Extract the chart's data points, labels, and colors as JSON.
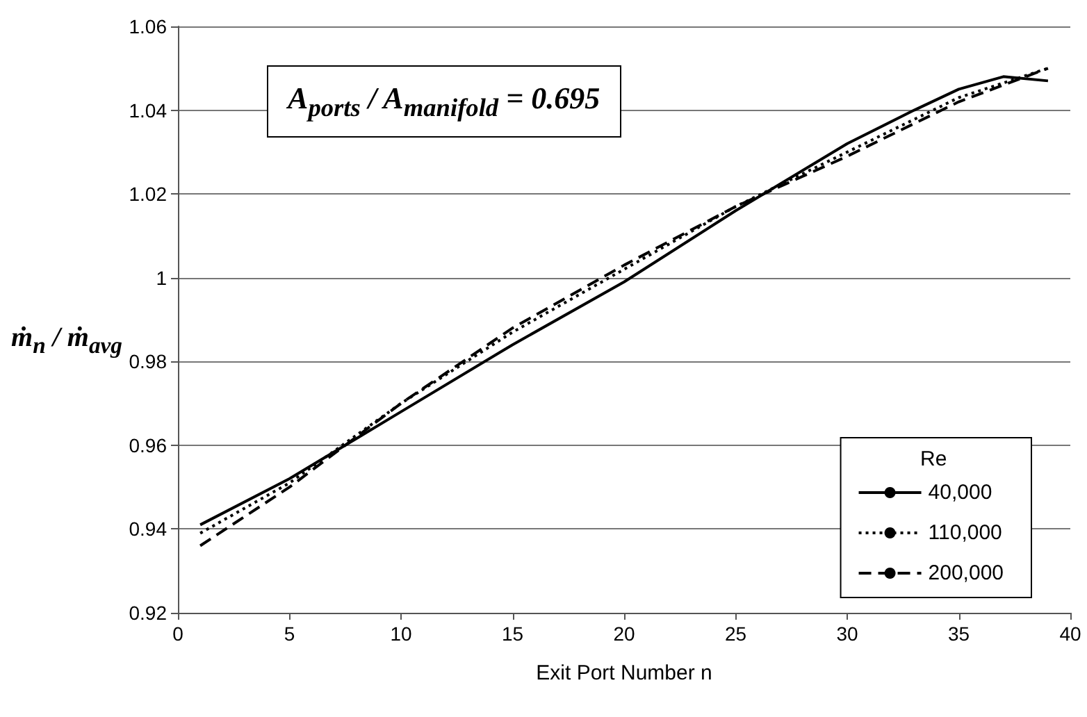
{
  "chart_data": {
    "type": "line",
    "xlabel": "Exit Port Number n",
    "ylabel": "ṁ$_{n}$ / ṁ$_{avg}$",
    "legend_title": "Re",
    "annotations": [
      "A$_{ports}$ / A$_{manifold}$ = 0.695"
    ],
    "xlim": [
      0,
      40
    ],
    "xticks": [
      0,
      5,
      10,
      15,
      20,
      25,
      30,
      35,
      40
    ],
    "ylim": [
      0.92,
      1.06
    ],
    "yticks": [
      0.92,
      0.94,
      0.96,
      0.98,
      1,
      1.02,
      1.04,
      1.06
    ],
    "grid": "y",
    "legend": "right",
    "marker": "none",
    "series": [
      {
        "name": "40,000",
        "color": "#000000",
        "line_style": "solid",
        "x": [
          1,
          5,
          10,
          15,
          20,
          25,
          30,
          33,
          35,
          37,
          39
        ],
        "values": [
          0.941,
          0.952,
          0.968,
          0.984,
          0.999,
          1.016,
          1.032,
          1.04,
          1.045,
          1.048,
          1.047
        ]
      },
      {
        "name": "110,000",
        "color": "#000000",
        "line_style": "dotted",
        "x": [
          1,
          5,
          10,
          15,
          20,
          25,
          30,
          35,
          39
        ],
        "values": [
          0.939,
          0.951,
          0.97,
          0.987,
          1.002,
          1.017,
          1.03,
          1.043,
          1.05
        ]
      },
      {
        "name": "200,000",
        "color": "#000000",
        "line_style": "dashed",
        "x": [
          1,
          5,
          10,
          15,
          20,
          25,
          30,
          35,
          39
        ],
        "values": [
          0.936,
          0.95,
          0.97,
          0.988,
          1.003,
          1.017,
          1.029,
          1.042,
          1.05
        ]
      }
    ]
  }
}
